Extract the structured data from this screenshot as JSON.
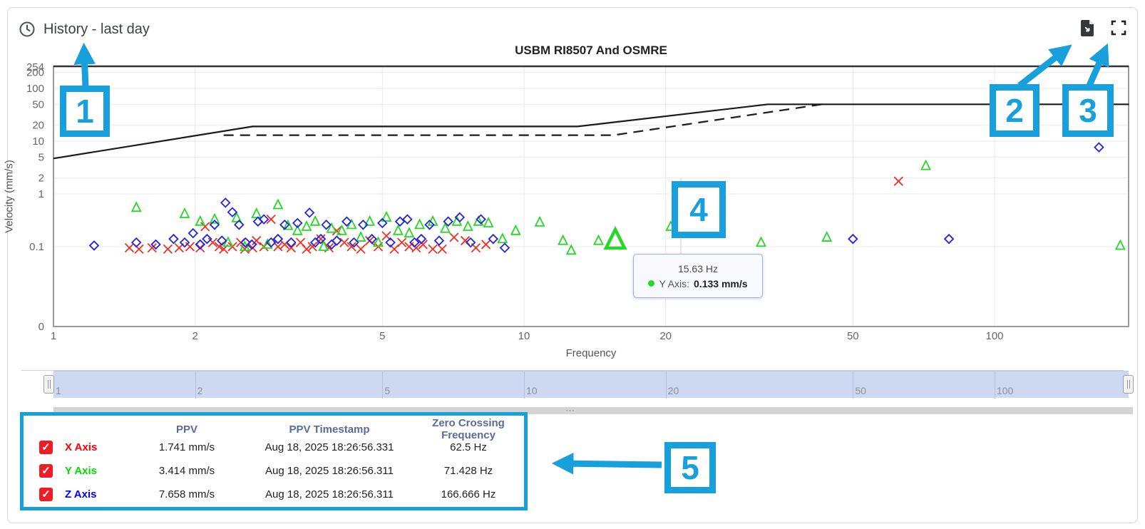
{
  "header": {
    "title": "History - last day",
    "clock_icon": "clock-icon"
  },
  "toolbar": {
    "export_icon": "file-export-icon",
    "fullscreen_icon": "fullscreen-icon"
  },
  "colors": {
    "accent_callout": "#18a0dc",
    "x_series": "#ee3124",
    "y_series": "#25d825",
    "z_series": "#2424e0",
    "checkbox_red": "#ee1c25",
    "table_header": "#5a6b9b",
    "navigator_fill": "#ccd9f0"
  },
  "chart_data": {
    "type": "scatter",
    "title": "USBM RI8507 And OSMRE",
    "xlabel": "Frequency",
    "ylabel": "Velocity (mm/s)",
    "x_scale": "log",
    "y_scale": "log",
    "xlim": [
      1,
      193
    ],
    "ylim": [
      0,
      254
    ],
    "x_ticks": [
      1,
      2,
      5,
      10,
      20,
      50,
      100
    ],
    "y_ticks": [
      254,
      200,
      100,
      50,
      20,
      10,
      5,
      2,
      1,
      0.1,
      0
    ],
    "grid": true,
    "series": [
      {
        "name": "X Axis",
        "marker": "x",
        "color": "#ee3124",
        "points": [
          [
            1.45,
            0.095
          ],
          [
            1.52,
            0.09
          ],
          [
            1.62,
            0.095
          ],
          [
            1.75,
            0.09
          ],
          [
            1.85,
            0.095
          ],
          [
            1.95,
            0.1
          ],
          [
            2.05,
            0.095
          ],
          [
            2.1,
            0.24
          ],
          [
            2.18,
            0.12
          ],
          [
            2.25,
            0.1
          ],
          [
            2.3,
            0.09
          ],
          [
            2.4,
            0.1
          ],
          [
            2.5,
            0.12
          ],
          [
            2.55,
            0.09
          ],
          [
            2.65,
            0.095
          ],
          [
            2.7,
            0.13
          ],
          [
            2.8,
            0.1
          ],
          [
            2.9,
            0.33
          ],
          [
            3.0,
            0.1
          ],
          [
            3.1,
            0.11
          ],
          [
            3.2,
            0.095
          ],
          [
            3.35,
            0.12
          ],
          [
            3.45,
            0.09
          ],
          [
            3.55,
            0.1
          ],
          [
            3.7,
            0.14
          ],
          [
            3.85,
            0.095
          ],
          [
            4.0,
            0.2
          ],
          [
            4.15,
            0.12
          ],
          [
            4.3,
            0.1
          ],
          [
            4.5,
            0.09
          ],
          [
            4.7,
            0.13
          ],
          [
            4.9,
            0.1
          ],
          [
            5.1,
            0.16
          ],
          [
            5.3,
            0.09
          ],
          [
            5.5,
            0.12
          ],
          [
            5.7,
            0.1
          ],
          [
            5.9,
            0.095
          ],
          [
            6.1,
            0.11
          ],
          [
            6.4,
            0.09
          ],
          [
            6.7,
            0.09
          ],
          [
            7.1,
            0.15
          ],
          [
            7.5,
            0.13
          ],
          [
            7.9,
            0.095
          ],
          [
            8.3,
            0.11
          ],
          [
            62.5,
            1.741
          ]
        ]
      },
      {
        "name": "Y Axis",
        "marker": "triangle",
        "color": "#25d825",
        "points": [
          [
            1.5,
            0.55
          ],
          [
            1.9,
            0.42
          ],
          [
            2.05,
            0.3
          ],
          [
            2.2,
            0.33
          ],
          [
            2.35,
            0.12
          ],
          [
            2.45,
            0.35
          ],
          [
            2.55,
            0.1
          ],
          [
            2.7,
            0.42
          ],
          [
            2.85,
            0.11
          ],
          [
            3.0,
            0.62
          ],
          [
            3.15,
            0.25
          ],
          [
            3.3,
            0.2
          ],
          [
            3.45,
            0.24
          ],
          [
            3.6,
            0.3
          ],
          [
            3.75,
            0.1
          ],
          [
            3.9,
            0.22
          ],
          [
            4.1,
            0.2
          ],
          [
            4.3,
            0.26
          ],
          [
            4.5,
            0.15
          ],
          [
            4.7,
            0.3
          ],
          [
            4.9,
            0.12
          ],
          [
            5.1,
            0.36
          ],
          [
            5.4,
            0.2
          ],
          [
            5.7,
            0.18
          ],
          [
            6.0,
            0.26
          ],
          [
            6.4,
            0.3
          ],
          [
            6.8,
            0.22
          ],
          [
            7.2,
            0.3
          ],
          [
            7.6,
            0.24
          ],
          [
            8.0,
            0.3
          ],
          [
            8.4,
            0.28
          ],
          [
            9.0,
            0.14
          ],
          [
            9.6,
            0.2
          ],
          [
            10.8,
            0.29
          ],
          [
            12.1,
            0.13
          ],
          [
            12.6,
            0.085
          ],
          [
            14.4,
            0.13
          ],
          [
            20.5,
            0.24
          ],
          [
            26,
            0.3
          ],
          [
            31.9,
            0.12
          ],
          [
            44,
            0.15
          ],
          [
            71.428,
            3.414
          ],
          [
            185,
            0.105
          ]
        ]
      },
      {
        "name": "Z Axis",
        "marker": "diamond",
        "color": "#2424e0",
        "points": [
          [
            1.22,
            0.105
          ],
          [
            1.5,
            0.12
          ],
          [
            1.65,
            0.11
          ],
          [
            1.8,
            0.14
          ],
          [
            1.9,
            0.12
          ],
          [
            1.98,
            0.18
          ],
          [
            2.05,
            0.11
          ],
          [
            2.12,
            0.14
          ],
          [
            2.2,
            0.26
          ],
          [
            2.28,
            0.13
          ],
          [
            2.32,
            0.68
          ],
          [
            2.4,
            0.45
          ],
          [
            2.48,
            0.26
          ],
          [
            2.56,
            0.12
          ],
          [
            2.64,
            0.11
          ],
          [
            2.72,
            0.3
          ],
          [
            2.8,
            0.33
          ],
          [
            2.9,
            0.12
          ],
          [
            3.0,
            0.14
          ],
          [
            3.1,
            0.26
          ],
          [
            3.2,
            0.12
          ],
          [
            3.3,
            0.28
          ],
          [
            3.5,
            0.44
          ],
          [
            3.6,
            0.12
          ],
          [
            3.7,
            0.14
          ],
          [
            3.8,
            0.26
          ],
          [
            3.9,
            0.11
          ],
          [
            4.0,
            0.13
          ],
          [
            4.2,
            0.3
          ],
          [
            4.35,
            0.12
          ],
          [
            4.55,
            0.26
          ],
          [
            4.75,
            0.14
          ],
          [
            5.0,
            0.28
          ],
          [
            5.2,
            0.12
          ],
          [
            5.45,
            0.3
          ],
          [
            5.65,
            0.33
          ],
          [
            5.85,
            0.12
          ],
          [
            6.05,
            0.14
          ],
          [
            6.3,
            0.26
          ],
          [
            6.6,
            0.13
          ],
          [
            6.9,
            0.3
          ],
          [
            7.3,
            0.36
          ],
          [
            7.7,
            0.12
          ],
          [
            8.1,
            0.33
          ],
          [
            8.6,
            0.14
          ],
          [
            9.1,
            0.095
          ],
          [
            50,
            0.14
          ],
          [
            80,
            0.14
          ],
          [
            166.666,
            7.658
          ]
        ]
      }
    ],
    "limit_lines": [
      {
        "name": "USBM RI8507",
        "style": "solid",
        "color": "#1a1a1a",
        "points": [
          [
            1,
            4.7
          ],
          [
            2.65,
            19
          ],
          [
            13,
            19
          ],
          [
            33,
            50
          ],
          [
            193,
            50
          ]
        ]
      },
      {
        "name": "OSMRE",
        "style": "dashed",
        "color": "#1a1a1a",
        "points": [
          [
            2.3,
            13
          ],
          [
            15.5,
            13
          ],
          [
            43,
            50
          ]
        ]
      }
    ],
    "hovered_point": {
      "series": "Y Axis",
      "freq": 15.63,
      "value": 0.133
    },
    "legend_position": "none"
  },
  "tooltip": {
    "freq": "15.63 Hz",
    "series_label": "Y Axis:",
    "value": "0.133 mm/s"
  },
  "navigator": {
    "ticks": [
      1,
      2,
      5,
      10,
      20,
      50,
      100
    ]
  },
  "scroll": {
    "grip": "⋯"
  },
  "table": {
    "headers": {
      "ppv": "PPV",
      "timestamp": "PPV Timestamp",
      "zcf": "Zero Crossing Frequency"
    },
    "rows": [
      {
        "axis": "X Axis",
        "color": "#ff0000",
        "checked": "✓",
        "ppv": "1.741 mm/s",
        "timestamp": "Aug 18, 2025 18:26:56.331",
        "zcf": "62.5 Hz"
      },
      {
        "axis": "Y Axis",
        "color": "#00dd00",
        "checked": "✓",
        "ppv": "3.414 mm/s",
        "timestamp": "Aug 18, 2025 18:26:56.311",
        "zcf": "71.428 Hz"
      },
      {
        "axis": "Z Axis",
        "color": "#0000ff",
        "checked": "✓",
        "ppv": "7.658 mm/s",
        "timestamp": "Aug 18, 2025 18:26:56.311",
        "zcf": "166.666 Hz"
      }
    ]
  },
  "annotations": {
    "items": [
      {
        "label": "1"
      },
      {
        "label": "2"
      },
      {
        "label": "3"
      },
      {
        "label": "4"
      },
      {
        "label": "5"
      }
    ]
  }
}
